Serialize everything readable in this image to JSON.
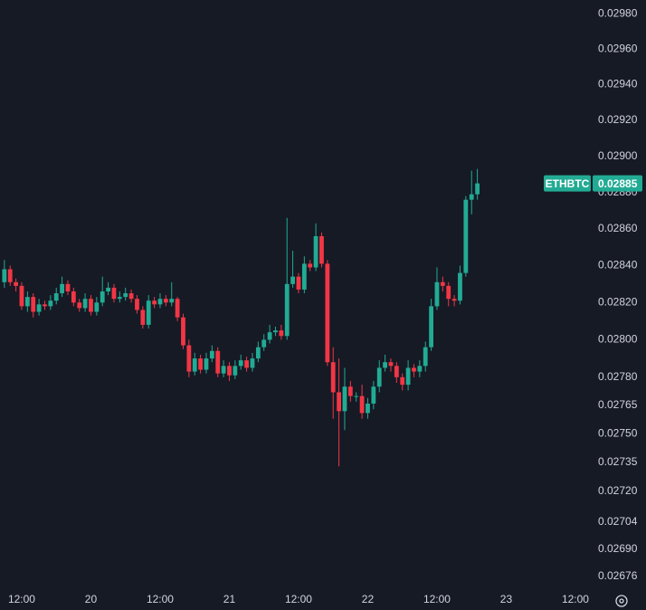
{
  "chart_data": {
    "type": "candlestick",
    "symbol": "ETHBTC",
    "last_price": 0.02885,
    "log_scale": true,
    "up_color": "#22ab94",
    "down_color": "#f23645",
    "x": [
      9,
      10,
      11,
      12,
      13,
      14,
      15,
      16,
      17,
      18,
      19,
      20,
      21,
      22,
      23,
      24,
      25,
      26,
      27,
      28,
      29,
      30,
      31,
      32,
      33,
      34,
      35,
      36,
      37,
      38,
      39,
      40,
      41,
      42,
      43,
      44,
      45,
      46,
      47,
      48,
      49,
      50,
      51,
      52,
      53,
      54,
      55,
      56,
      57,
      58,
      59,
      60,
      61,
      62,
      63,
      64,
      65,
      66,
      67,
      68,
      69,
      70,
      71,
      72,
      73,
      74,
      75,
      76,
      77,
      78,
      79,
      80,
      81,
      82,
      83,
      84,
      85,
      86,
      87,
      88,
      89,
      90,
      91
    ],
    "open": [
      0.02831,
      0.02838,
      0.02831,
      0.02829,
      0.02818,
      0.02823,
      0.02815,
      0.02819,
      0.02818,
      0.02821,
      0.02825,
      0.0283,
      0.02826,
      0.0282,
      0.02817,
      0.02822,
      0.02815,
      0.0282,
      0.02826,
      0.02828,
      0.02822,
      0.02823,
      0.02825,
      0.02822,
      0.02816,
      0.02808,
      0.02821,
      0.02819,
      0.02822,
      0.0282,
      0.02822,
      0.02812,
      0.02797,
      0.02783,
      0.0279,
      0.02784,
      0.0279,
      0.02794,
      0.02782,
      0.02786,
      0.02781,
      0.02786,
      0.02789,
      0.02785,
      0.0279,
      0.02796,
      0.028,
      0.02804,
      0.02805,
      0.02802,
      0.0283,
      0.02834,
      0.02827,
      0.02841,
      0.02839,
      0.02856,
      0.02841,
      0.02788,
      0.02772,
      0.02762,
      0.02775,
      0.0277,
      0.0277,
      0.02761,
      0.02766,
      0.02775,
      0.02785,
      0.02788,
      0.02786,
      0.0278,
      0.02776,
      0.02785,
      0.02783,
      0.02786,
      0.02796,
      0.02818,
      0.02831,
      0.02829,
      0.02822,
      0.02821,
      0.02836,
      0.02876,
      0.02879
    ],
    "high": [
      0.02843,
      0.0284,
      0.02833,
      0.02831,
      0.02826,
      0.02825,
      0.02822,
      0.02821,
      0.02824,
      0.02828,
      0.02834,
      0.02832,
      0.02828,
      0.02822,
      0.02825,
      0.02824,
      0.02823,
      0.02834,
      0.02831,
      0.0283,
      0.02826,
      0.02828,
      0.02827,
      0.02824,
      0.02818,
      0.02824,
      0.02823,
      0.02825,
      0.02824,
      0.02831,
      0.02823,
      0.02814,
      0.028,
      0.02793,
      0.02792,
      0.02793,
      0.02797,
      0.02796,
      0.02789,
      0.02788,
      0.02789,
      0.02792,
      0.02791,
      0.02793,
      0.02799,
      0.02803,
      0.02808,
      0.02807,
      0.02808,
      0.02866,
      0.02848,
      0.02836,
      0.02845,
      0.02843,
      0.02863,
      0.02858,
      0.02843,
      0.02796,
      0.0279,
      0.02785,
      0.02778,
      0.02772,
      0.02776,
      0.02769,
      0.02778,
      0.02789,
      0.02792,
      0.0279,
      0.02788,
      0.02782,
      0.02789,
      0.02787,
      0.02789,
      0.02799,
      0.02822,
      0.02839,
      0.02834,
      0.02831,
      0.02824,
      0.0284,
      0.02878,
      0.02892,
      0.02893
    ],
    "low": [
      0.02828,
      0.02829,
      0.02826,
      0.02816,
      0.02815,
      0.02812,
      0.02813,
      0.02816,
      0.02816,
      0.02819,
      0.02823,
      0.02824,
      0.02818,
      0.02815,
      0.02815,
      0.02813,
      0.02813,
      0.02818,
      0.02824,
      0.0282,
      0.0282,
      0.02821,
      0.0282,
      0.02814,
      0.02806,
      0.02806,
      0.02817,
      0.02817,
      0.02818,
      0.02818,
      0.0281,
      0.02795,
      0.0278,
      0.02781,
      0.02782,
      0.02782,
      0.02788,
      0.0278,
      0.0278,
      0.02778,
      0.02779,
      0.02784,
      0.02783,
      0.02783,
      0.02788,
      0.02794,
      0.02798,
      0.02802,
      0.028,
      0.028,
      0.02828,
      0.02825,
      0.02825,
      0.02837,
      0.02837,
      0.02839,
      0.02786,
      0.02758,
      0.02733,
      0.02752,
      0.02767,
      0.02767,
      0.02758,
      0.02758,
      0.02763,
      0.02772,
      0.02783,
      0.02783,
      0.02777,
      0.02773,
      0.02773,
      0.0278,
      0.0278,
      0.02783,
      0.02794,
      0.02816,
      0.02826,
      0.02818,
      0.02818,
      0.02819,
      0.02834,
      0.02868,
      0.02876
    ],
    "close": [
      0.02838,
      0.02831,
      0.02829,
      0.02818,
      0.02823,
      0.02815,
      0.02819,
      0.02818,
      0.02821,
      0.02825,
      0.0283,
      0.02826,
      0.0282,
      0.02817,
      0.02822,
      0.02815,
      0.0282,
      0.02826,
      0.02828,
      0.02822,
      0.02823,
      0.02825,
      0.02822,
      0.02816,
      0.02808,
      0.02821,
      0.02819,
      0.02822,
      0.0282,
      0.02822,
      0.02812,
      0.02797,
      0.02783,
      0.0279,
      0.02784,
      0.0279,
      0.02794,
      0.02782,
      0.02786,
      0.02781,
      0.02786,
      0.02789,
      0.02785,
      0.0279,
      0.02796,
      0.028,
      0.02804,
      0.02805,
      0.02802,
      0.0283,
      0.02834,
      0.02827,
      0.02841,
      0.02839,
      0.02856,
      0.02841,
      0.02788,
      0.02772,
      0.02762,
      0.02775,
      0.0277,
      0.0277,
      0.02761,
      0.02766,
      0.02775,
      0.02785,
      0.02788,
      0.02786,
      0.0278,
      0.02776,
      0.02785,
      0.02783,
      0.02786,
      0.02796,
      0.02818,
      0.02831,
      0.02829,
      0.02822,
      0.02821,
      0.02836,
      0.02876,
      0.02879,
      0.02885
    ],
    "xlim": [
      8.24,
      110.2
    ],
    "xticks": [
      {
        "value": 12,
        "label": "12:00"
      },
      {
        "value": 24,
        "label": "20"
      },
      {
        "value": 36,
        "label": "12:00"
      },
      {
        "value": 48,
        "label": "21"
      },
      {
        "value": 60,
        "label": "12:00"
      },
      {
        "value": 72,
        "label": "22"
      },
      {
        "value": 84,
        "label": "12:00"
      },
      {
        "value": 96,
        "label": "23"
      },
      {
        "value": 108,
        "label": "12:00"
      }
    ],
    "ylim": [
      0.0267,
      0.02988
    ],
    "yticks": [
      {
        "value": 0.0298,
        "label": "0.02980"
      },
      {
        "value": 0.0296,
        "label": "0.02960"
      },
      {
        "value": 0.0294,
        "label": "0.02940"
      },
      {
        "value": 0.0292,
        "label": "0.02920"
      },
      {
        "value": 0.029,
        "label": "0.02900"
      },
      {
        "value": 0.0288,
        "label": "0.02880"
      },
      {
        "value": 0.0286,
        "label": "0.02860"
      },
      {
        "value": 0.0284,
        "label": "0.02840"
      },
      {
        "value": 0.0282,
        "label": "0.02820"
      },
      {
        "value": 0.028,
        "label": "0.02800"
      },
      {
        "value": 0.0278,
        "label": "0.02780"
      },
      0.02765,
      {
        "value": 0.0275,
        "label": "0.02750"
      },
      0.02735,
      {
        "value": 0.0272,
        "label": "0.02720"
      },
      0.02704,
      {
        "value": 0.0269,
        "label": "0.02690"
      },
      0.02676
    ]
  }
}
